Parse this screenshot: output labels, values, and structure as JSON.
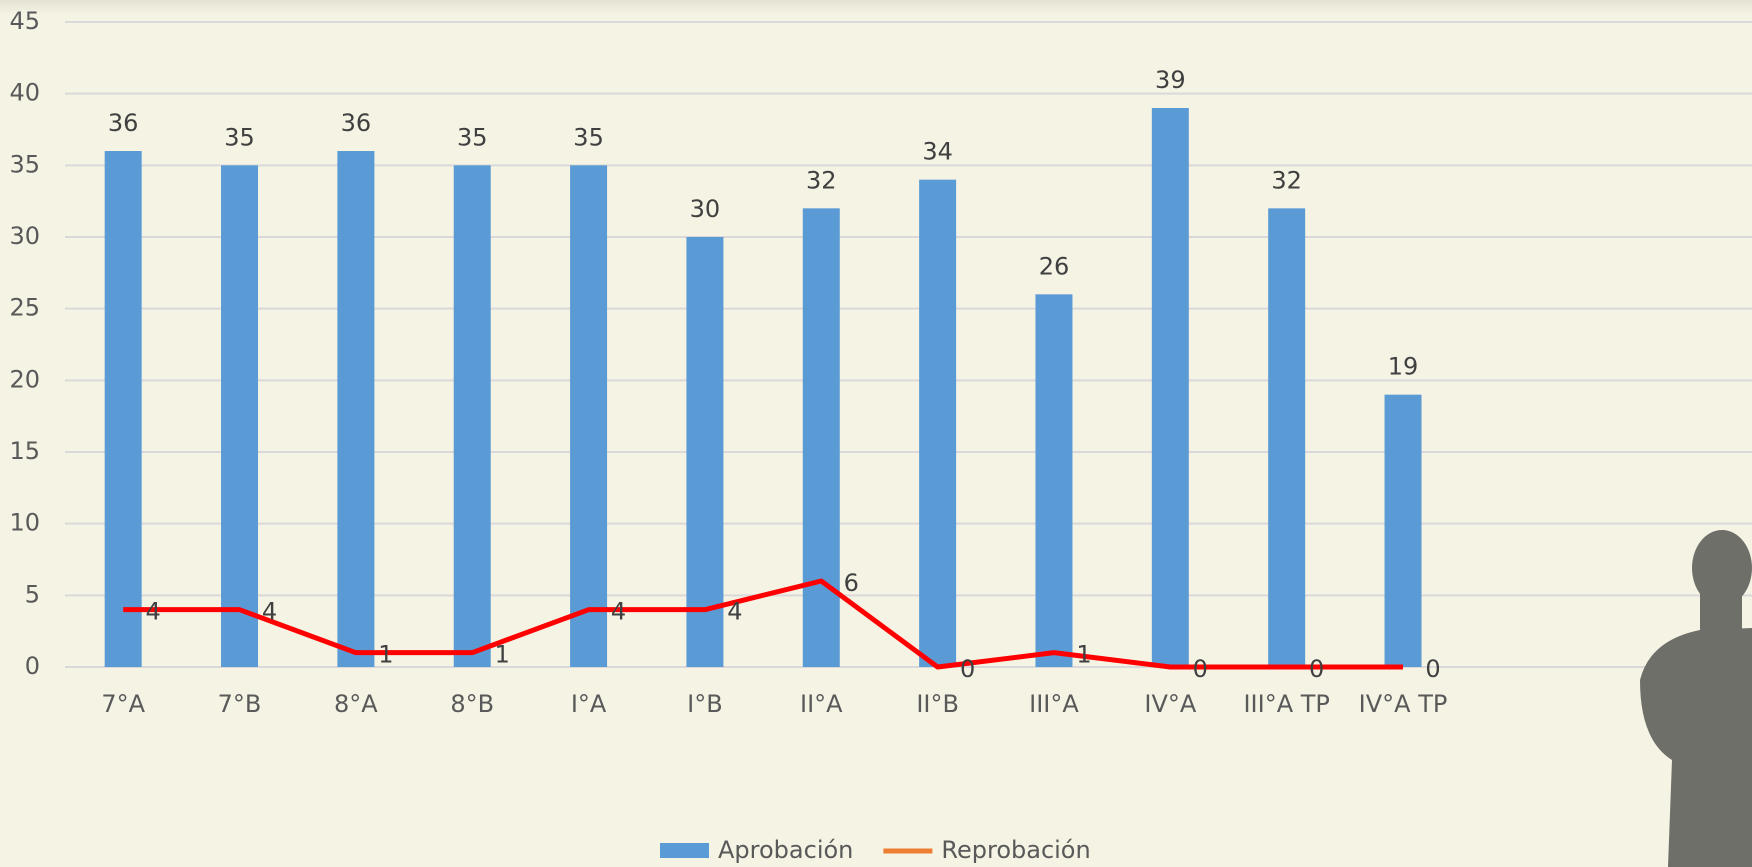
{
  "chart_data": {
    "type": "bar_line",
    "categories": [
      "7°A",
      "7°B",
      "8°A",
      "8°B",
      "I°A",
      "I°B",
      "II°A",
      "II°B",
      "III°A",
      "IV°A",
      "III°A TP",
      "IV°A TP"
    ],
    "series": [
      {
        "name": "Aprobación",
        "type": "bar",
        "color": "#5b9bd5",
        "values": [
          36,
          35,
          36,
          35,
          35,
          30,
          32,
          34,
          26,
          39,
          32,
          19
        ]
      },
      {
        "name": "Reprobación",
        "type": "line",
        "color": "#ff0000",
        "legend_color": "#ed7d31",
        "values": [
          4,
          4,
          1,
          1,
          4,
          4,
          6,
          0,
          1,
          0,
          0,
          0
        ]
      }
    ],
    "ylim": [
      0,
      45
    ],
    "yticks": [
      0,
      5,
      10,
      15,
      20,
      25,
      30,
      35,
      40,
      45
    ],
    "grid": true,
    "legend": "bottom"
  }
}
